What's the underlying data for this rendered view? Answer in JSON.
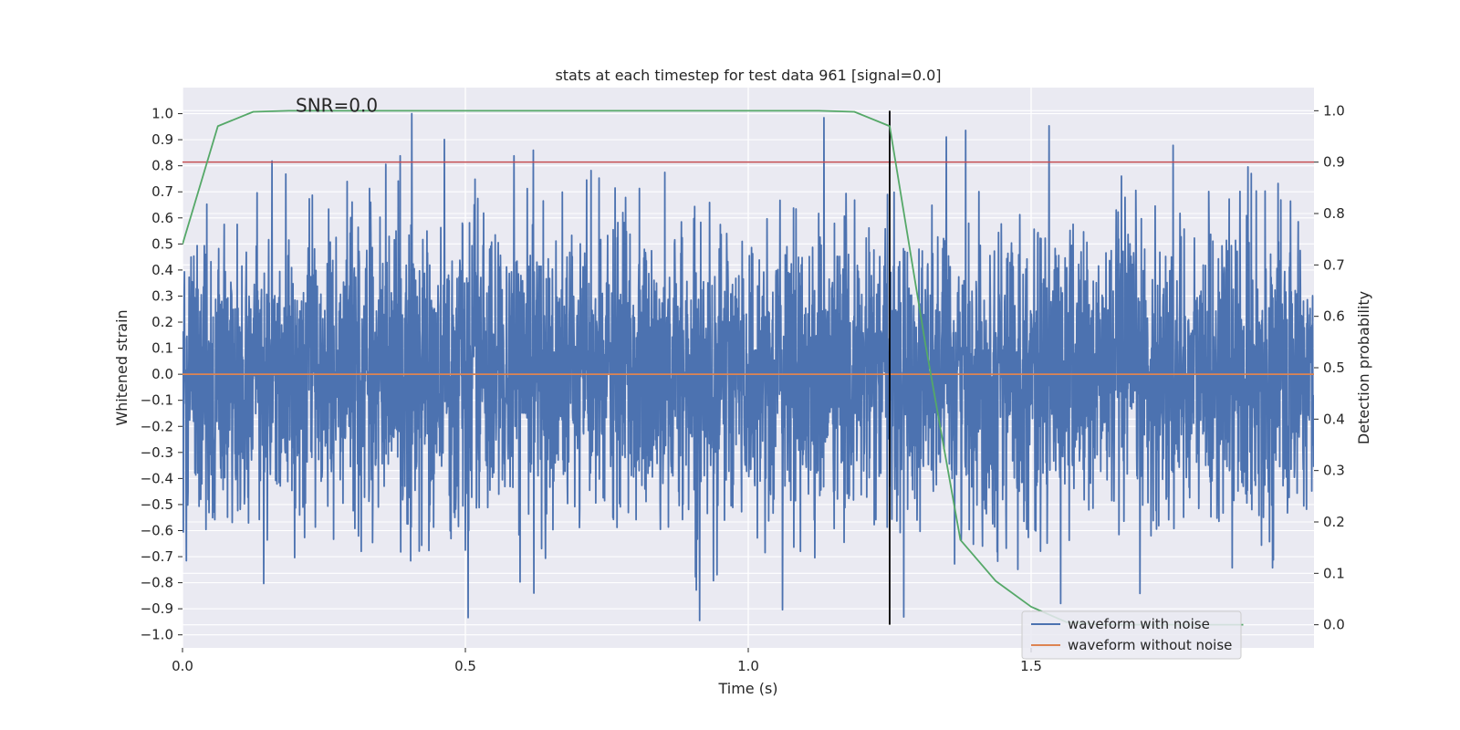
{
  "chart_data": {
    "type": "line",
    "title": "stats at each timestep for test data 961 [signal=0.0]",
    "xlabel": "Time (s)",
    "ylabel": "Whitened strain",
    "y2label": "Detection probability",
    "xlim": [
      0.0,
      2.0
    ],
    "ylim": [
      -1.05,
      1.1
    ],
    "y2lim": [
      -0.045,
      1.045
    ],
    "xticks": [
      0.0,
      0.5,
      1.0,
      1.5
    ],
    "xtick_labels": [
      "0.0",
      "0.5",
      "1.0",
      "1.5"
    ],
    "yticks": [
      -1.0,
      -0.9,
      -0.8,
      -0.7,
      -0.6,
      -0.5,
      -0.4,
      -0.3,
      -0.2,
      -0.1,
      0.0,
      0.1,
      0.2,
      0.3,
      0.4,
      0.5,
      0.6,
      0.7,
      0.8,
      0.9,
      1.0
    ],
    "ytick_labels": [
      "−1.0",
      "−0.9",
      "−0.8",
      "−0.7",
      "−0.6",
      "−0.5",
      "−0.4",
      "−0.3",
      "−0.2",
      "−0.1",
      "0.0",
      "0.1",
      "0.2",
      "0.3",
      "0.4",
      "0.5",
      "0.6",
      "0.7",
      "0.8",
      "0.9",
      "1.0"
    ],
    "y2ticks": [
      0.0,
      0.1,
      0.2,
      0.3,
      0.4,
      0.5,
      0.6,
      0.7,
      0.8,
      0.9,
      1.0
    ],
    "y2tick_labels": [
      "0.0",
      "0.1",
      "0.2",
      "0.3",
      "0.4",
      "0.5",
      "0.6",
      "0.7",
      "0.8",
      "0.9",
      "1.0"
    ],
    "annotation": {
      "text": "SNR=0.0",
      "x": 0.2,
      "y": 1.0
    },
    "noise_series": {
      "name": "waveform with noise",
      "color": "#4c72b0",
      "x_start": 0.0,
      "x_end": 1.9995,
      "n_samples": 4096,
      "std": 0.28,
      "clip": [
        -0.95,
        1.0
      ]
    },
    "series": [
      {
        "name": "waveform without noise",
        "color": "#dd8452",
        "x": [
          0.0,
          2.0
        ],
        "y": [
          0.0,
          0.0
        ]
      },
      {
        "name": "detection probability",
        "color": "#55a868",
        "axis": "right",
        "x": [
          0.0,
          0.0625,
          0.125,
          0.1875,
          0.25,
          0.3125,
          0.375,
          0.4375,
          0.5,
          0.5625,
          0.625,
          0.6875,
          0.75,
          0.8125,
          0.875,
          0.9375,
          1.0,
          1.0625,
          1.125,
          1.1875,
          1.25,
          1.3125,
          1.375,
          1.4375,
          1.5,
          1.5625,
          1.625,
          1.6875,
          1.75,
          1.8125,
          1.875
        ],
        "y": [
          0.74,
          0.97,
          0.998,
          1.0,
          1.0,
          1.0,
          1.0,
          1.0,
          1.0,
          1.0,
          1.0,
          1.0,
          1.0,
          1.0,
          1.0,
          1.0,
          1.0,
          1.0,
          1.0,
          0.998,
          0.97,
          0.55,
          0.165,
          0.085,
          0.035,
          0.005,
          0.0,
          0.0,
          0.0,
          0.0,
          0.0
        ]
      }
    ],
    "threshold_line": {
      "y2": 0.9,
      "color": "#c44e52"
    },
    "vertical_line": {
      "x": 1.25,
      "color": "#000000",
      "y2_range": [
        0.0,
        1.0
      ]
    },
    "legend": {
      "placement": "lower-right",
      "entries": [
        {
          "label": "waveform with noise",
          "color": "#4c72b0"
        },
        {
          "label": "waveform without noise",
          "color": "#dd8452"
        }
      ]
    }
  }
}
